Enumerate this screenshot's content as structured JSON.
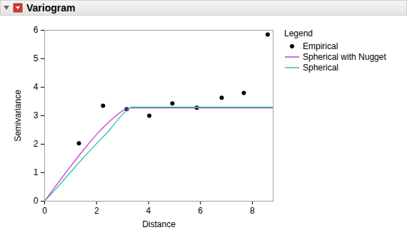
{
  "chart_data": {
    "type": "line",
    "title": "Variogram",
    "x_label": "Distance",
    "y_label": "Semivariance",
    "legend_title": "Legend",
    "legend": "right",
    "grid": false,
    "xlim": [
      0,
      8.8
    ],
    "ylim": [
      0,
      6
    ],
    "xticks": [
      0,
      2,
      4,
      6,
      8
    ],
    "yticks": [
      0,
      1,
      2,
      3,
      4,
      5,
      6
    ],
    "series": [
      {
        "name": "Empirical",
        "type": "scatter",
        "marker": "circle",
        "color": "#000000",
        "x": [
          1.32,
          2.25,
          3.16,
          4.03,
          4.92,
          5.86,
          6.82,
          7.67,
          8.59
        ],
        "values": [
          2.03,
          3.35,
          3.23,
          3.0,
          3.43,
          3.28,
          3.63,
          3.8,
          5.85
        ]
      },
      {
        "name": "Spherical with Nugget",
        "type": "line",
        "line_style": "solid",
        "color": "#c83ccd",
        "x": [
          0,
          0.5,
          1,
          1.5,
          2,
          2.5,
          2.8,
          3.0,
          3.2,
          4,
          6,
          8.8
        ],
        "values": [
          0,
          0.62,
          1.22,
          1.8,
          2.34,
          2.8,
          3.04,
          3.17,
          3.27,
          3.27,
          3.27,
          3.27
        ]
      },
      {
        "name": "Spherical",
        "type": "line",
        "line_style": "solid",
        "color": "#2fc3a0",
        "x": [
          0,
          0.5,
          1,
          1.5,
          2,
          2.5,
          2.8,
          3.0,
          3.2,
          3.35,
          4,
          6,
          8.8
        ],
        "values": [
          0,
          0.5,
          1.02,
          1.53,
          2.02,
          2.5,
          2.84,
          3.04,
          3.22,
          3.3,
          3.3,
          3.3,
          3.3
        ]
      }
    ]
  }
}
